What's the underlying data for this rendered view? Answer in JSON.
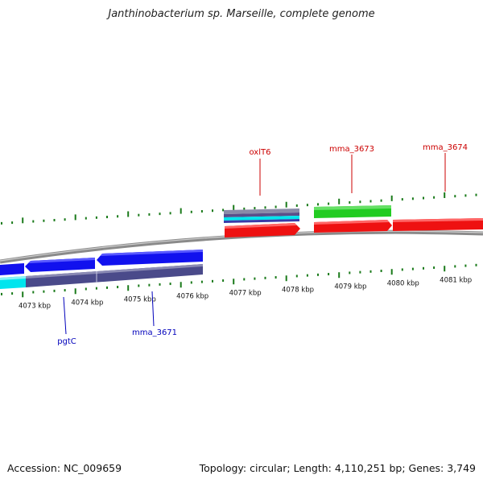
{
  "title": "Janthinobacterium sp. Marseille, complete genome",
  "accession": "Accession: NC_009659",
  "summary": "Topology: circular; Length: 4,110,251 bp; Genes: 3,749",
  "colors": {
    "backbone": "#8a8a8a",
    "tick": "#1a7a1a",
    "forward_gene": "#ee1111",
    "forward_label": "#cc0000",
    "reverse_gene": "#1111ee",
    "reverse_label": "#0000bb",
    "rna": "#22cc22",
    "other": "#00e5ee",
    "cds_track": "#4a4a8a"
  },
  "kbp_labels": [
    "4073 kbp",
    "4074 kbp",
    "4075 kbp",
    "4076 kbp",
    "4077 kbp",
    "4078 kbp",
    "4079 kbp",
    "4080 kbp",
    "4081 kbp"
  ],
  "forward_labels": [
    "oxlT6",
    "mma_3673",
    "mma_3674"
  ],
  "reverse_labels": [
    "pgtC",
    "mma_3671"
  ]
}
